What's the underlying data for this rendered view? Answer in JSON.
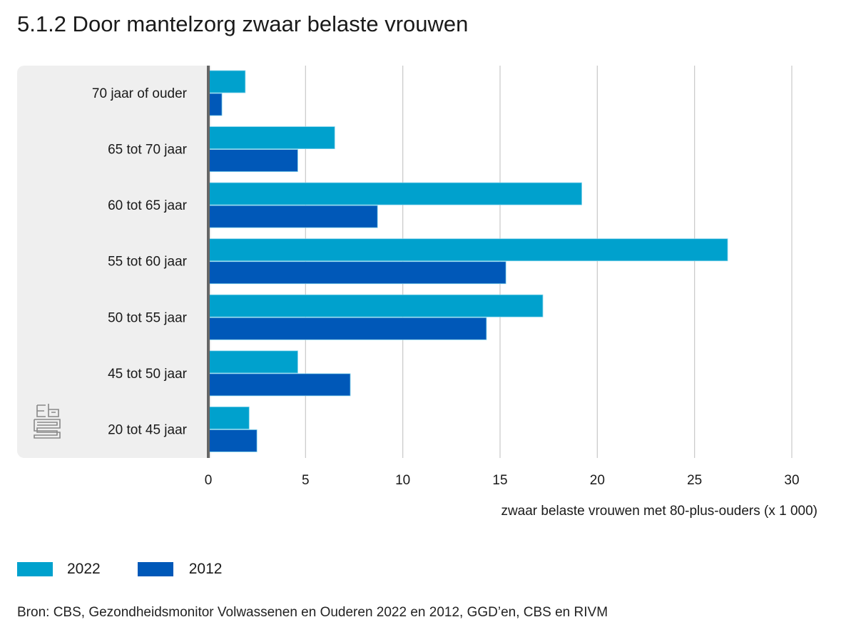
{
  "chart_data": {
    "type": "bar",
    "orientation": "horizontal",
    "title": "5.1.2 Door mantelzorg zwaar belaste vrouwen",
    "categories": [
      "70 jaar of ouder",
      "65 tot 70 jaar",
      "60 tot 65 jaar",
      "55 tot 60 jaar",
      "50 tot 55 jaar",
      "45 tot 50 jaar",
      "20 tot 45 jaar"
    ],
    "series": [
      {
        "name": "2022",
        "color": "#00a1cd",
        "values": [
          1.9,
          6.5,
          19.2,
          26.7,
          17.2,
          4.6,
          2.1
        ]
      },
      {
        "name": "2012",
        "color": "#0058b8",
        "values": [
          0.7,
          4.6,
          8.7,
          15.3,
          14.3,
          7.3,
          2.5
        ]
      }
    ],
    "xlabel": "zwaar belaste vrouwen met 80-plus-ouders (x 1 000)",
    "ylabel": "",
    "xlim": [
      0,
      30
    ],
    "xticks": [
      0,
      5,
      10,
      15,
      20,
      25,
      30
    ],
    "grid": true,
    "legend_position": "bottom-left"
  },
  "source": "Bron: CBS, Gezondheidsmonitor Volwassenen en Ouderen 2022 en 2012, GGD’en, CBS en RIVM",
  "logo": "cbs-logo-icon"
}
